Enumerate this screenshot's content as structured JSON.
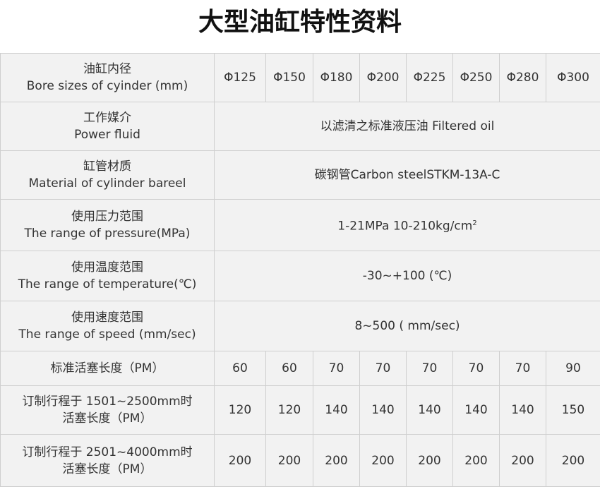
{
  "title": "大型油缸特性资料",
  "bore": {
    "zh": "油缸内径",
    "en": "Bore sizes of cyinder (mm)",
    "values": [
      "Φ125",
      "Φ150",
      "Φ180",
      "Φ200",
      "Φ225",
      "Φ250",
      "Φ280",
      "Φ300"
    ]
  },
  "fluid": {
    "zh": "工作媒介",
    "en": "Power fluid",
    "value": "以滤清之标准液压油 Filtered oil"
  },
  "material": {
    "zh": "缸管材质",
    "en": "Material of cylinder bareel",
    "value": "碳钢管Carbon steelSTKM-13A-C"
  },
  "pressure": {
    "zh": "使用压力范围",
    "en": "The range of pressure(MPa)",
    "value": "1-21MPa 10-210kg/cm",
    "sup": "2"
  },
  "temperature": {
    "zh": "使用温度范围",
    "en": "The range of temperature(℃)",
    "value": "-30~+100 (℃)"
  },
  "speed": {
    "zh": "使用速度范围",
    "en": "The range of speed (mm/sec)",
    "value": "8~500 ( mm/sec)"
  },
  "std_piston": {
    "label": "标准活塞长度（PM）",
    "values": [
      "60",
      "60",
      "70",
      "70",
      "70",
      "70",
      "70",
      "90"
    ]
  },
  "custom1": {
    "line1": "订制行程于 1501~2500mm时",
    "line2": "活塞长度（PM）",
    "values": [
      "120",
      "120",
      "140",
      "140",
      "140",
      "140",
      "140",
      "150"
    ]
  },
  "custom2": {
    "line1": "订制行程于 2501~4000mm时",
    "line2": "活塞长度（PM）",
    "values": [
      "200",
      "200",
      "200",
      "200",
      "200",
      "200",
      "200",
      "200"
    ]
  }
}
